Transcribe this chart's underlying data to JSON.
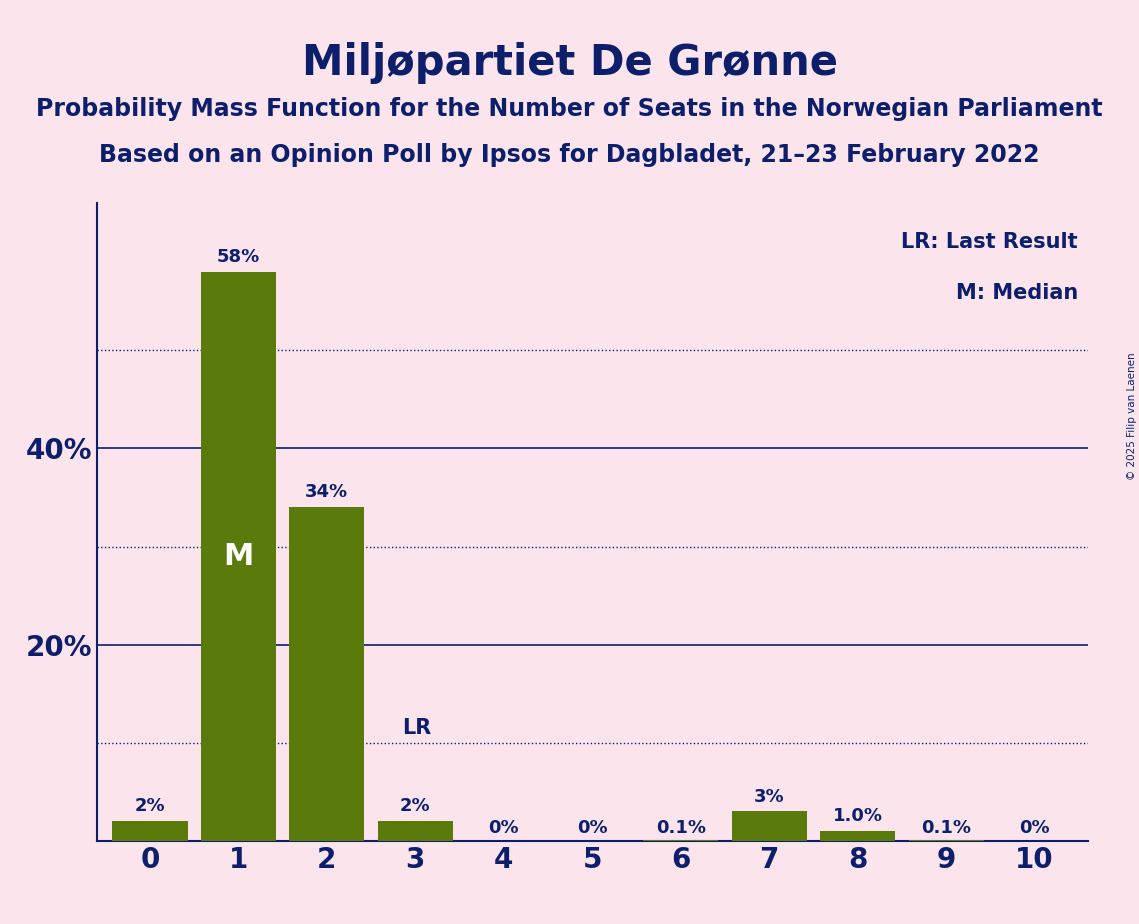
{
  "title": "Miljøpartiet De Grønne",
  "subtitle1": "Probability Mass Function for the Number of Seats in the Norwegian Parliament",
  "subtitle2": "Based on an Opinion Poll by Ipsos for Dagbladet, 21–23 February 2022",
  "copyright": "© 2025 Filip van Laenen",
  "categories": [
    0,
    1,
    2,
    3,
    4,
    5,
    6,
    7,
    8,
    9,
    10
  ],
  "values": [
    0.02,
    0.58,
    0.34,
    0.02,
    0.0,
    0.0,
    0.001,
    0.03,
    0.01,
    0.001,
    0.0
  ],
  "bar_labels": [
    "2%",
    "58%",
    "34%",
    "2%",
    "0%",
    "0%",
    "0.1%",
    "3%",
    "1.0%",
    "0.1%",
    "0%"
  ],
  "bar_color": "#5a7a0c",
  "background_color": "#fce4ec",
  "text_color": "#0d1f6b",
  "median_bar": 1,
  "lr_bar": 3,
  "title_fontsize": 30,
  "subtitle_fontsize": 17,
  "legend_text_lr": "LR: Last Result",
  "legend_text_m": "M: Median",
  "solid_gridlines": [
    0.2,
    0.4
  ],
  "dotted_gridlines": [
    0.1,
    0.3,
    0.5
  ],
  "ylim": [
    0,
    0.65
  ]
}
